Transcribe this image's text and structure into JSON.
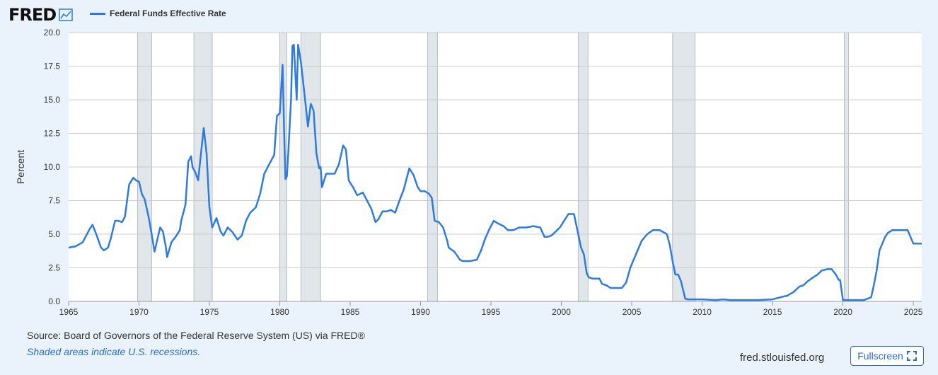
{
  "logo": {
    "text": "FRED"
  },
  "source_text": "Source: Board of Governors of the Federal Reserve System (US) via FRED®",
  "note_text": "Shaded areas indicate U.S. recessions.",
  "site_text": "fred.stlouisfed.org",
  "fullscreen_label": "Fullscreen",
  "colors": {
    "line": "#2f7bdc",
    "recession": "#e1e6ea",
    "grid": "#cccccc",
    "background": "#eaf3fb"
  },
  "chart_data": {
    "type": "line",
    "ylabel": "Percent",
    "xlim": [
      1965,
      2025.6
    ],
    "ylim": [
      0,
      20
    ],
    "y_ticks": [
      "0.0",
      "2.5",
      "5.0",
      "7.5",
      "10.0",
      "12.5",
      "15.0",
      "17.5",
      "20.0"
    ],
    "x_ticks": [
      "1965",
      "1970",
      "1975",
      "1980",
      "1985",
      "1990",
      "1995",
      "2000",
      "2005",
      "2010",
      "2015",
      "2020",
      "2025"
    ],
    "grid": "horizontal",
    "legend": "top-left",
    "recessions": [
      [
        1969.9,
        1970.9
      ],
      [
        1973.9,
        1975.2
      ],
      [
        1980.0,
        1980.5
      ],
      [
        1981.5,
        1982.9
      ],
      [
        1990.5,
        1991.2
      ],
      [
        2001.2,
        2001.9
      ],
      [
        2007.9,
        2009.5
      ],
      [
        2020.1,
        2020.4
      ]
    ],
    "series": [
      {
        "name": "Federal Funds Effective Rate",
        "x": [
          1965.0,
          1965.5,
          1966.0,
          1966.5,
          1966.7,
          1967.0,
          1967.3,
          1967.5,
          1967.8,
          1968.0,
          1968.3,
          1968.5,
          1968.8,
          1969.0,
          1969.3,
          1969.6,
          1969.8,
          1970.0,
          1970.2,
          1970.4,
          1970.7,
          1970.9,
          1971.1,
          1971.3,
          1971.5,
          1971.7,
          1971.9,
          1972.0,
          1972.3,
          1972.6,
          1972.9,
          1973.0,
          1973.3,
          1973.5,
          1973.7,
          1973.8,
          1974.0,
          1974.2,
          1974.4,
          1974.6,
          1974.8,
          1975.0,
          1975.2,
          1975.5,
          1975.8,
          1976.0,
          1976.3,
          1976.6,
          1977.0,
          1977.3,
          1977.6,
          1977.9,
          1978.3,
          1978.6,
          1978.9,
          1979.2,
          1979.6,
          1979.8,
          1980.0,
          1980.2,
          1980.3,
          1980.4,
          1980.5,
          1980.6,
          1980.8,
          1980.9,
          1981.0,
          1981.2,
          1981.3,
          1981.5,
          1981.8,
          1982.0,
          1982.2,
          1982.4,
          1982.6,
          1982.8,
          1982.9,
          1983.0,
          1983.3,
          1983.6,
          1983.9,
          1984.2,
          1984.5,
          1984.7,
          1984.9,
          1985.2,
          1985.5,
          1985.9,
          1986.2,
          1986.5,
          1986.8,
          1987.0,
          1987.3,
          1987.6,
          1987.9,
          1988.2,
          1988.5,
          1988.8,
          1989.0,
          1989.2,
          1989.5,
          1989.8,
          1990.0,
          1990.3,
          1990.6,
          1990.8,
          1991.0,
          1991.3,
          1991.6,
          1991.9,
          1992.0,
          1992.4,
          1992.8,
          1993.0,
          1993.5,
          1994.0,
          1994.3,
          1994.6,
          1994.9,
          1995.2,
          1995.5,
          1995.9,
          1996.2,
          1996.6,
          1997.0,
          1997.5,
          1998.0,
          1998.5,
          1998.8,
          1999.0,
          1999.3,
          1999.6,
          1999.9,
          2000.2,
          2000.5,
          2000.9,
          2001.0,
          2001.2,
          2001.4,
          2001.6,
          2001.8,
          2001.95,
          2002.2,
          2002.7,
          2002.9,
          2003.2,
          2003.5,
          2003.8,
          2004.3,
          2004.6,
          2004.9,
          2005.3,
          2005.7,
          2006.1,
          2006.5,
          2006.7,
          2007.0,
          2007.5,
          2007.7,
          2007.9,
          2008.1,
          2008.3,
          2008.5,
          2008.8,
          2009.0,
          2009.5,
          2010.0,
          2011.0,
          2011.5,
          2012.0,
          2013.0,
          2014.0,
          2015.0,
          2015.9,
          2016.0,
          2016.5,
          2016.9,
          2017.2,
          2017.5,
          2017.9,
          2018.2,
          2018.5,
          2018.9,
          2019.2,
          2019.5,
          2019.7,
          2019.8,
          2020.0,
          2020.15,
          2020.3,
          2020.5,
          2021.0,
          2021.5,
          2022.0,
          2022.2,
          2022.4,
          2022.6,
          2022.8,
          2023.0,
          2023.2,
          2023.5,
          2023.9,
          2024.3,
          2024.6,
          2024.8,
          2025.0,
          2025.6
        ],
        "values": [
          4.0,
          4.1,
          4.4,
          5.4,
          5.7,
          4.9,
          4.0,
          3.8,
          4.0,
          4.7,
          6.0,
          6.0,
          5.9,
          6.3,
          8.7,
          9.2,
          9.0,
          8.9,
          8.0,
          7.6,
          6.2,
          5.0,
          3.7,
          4.6,
          5.5,
          5.2,
          4.1,
          3.3,
          4.4,
          4.8,
          5.3,
          6.0,
          7.2,
          10.4,
          10.8,
          10.0,
          9.6,
          9.0,
          11.0,
          12.9,
          11.0,
          7.0,
          5.5,
          6.2,
          5.2,
          4.9,
          5.5,
          5.2,
          4.6,
          4.9,
          6.0,
          6.6,
          7.0,
          8.0,
          9.5,
          10.1,
          10.9,
          13.8,
          14.0,
          17.6,
          13.0,
          9.1,
          9.3,
          11.0,
          15.0,
          19.0,
          19.1,
          15.0,
          19.1,
          17.8,
          15.0,
          13.0,
          14.7,
          14.2,
          11.0,
          9.9,
          10.0,
          8.5,
          9.5,
          9.5,
          9.5,
          10.2,
          11.6,
          11.3,
          9.0,
          8.5,
          7.9,
          8.1,
          7.5,
          6.9,
          5.9,
          6.1,
          6.7,
          6.7,
          6.8,
          6.6,
          7.5,
          8.3,
          9.1,
          9.9,
          9.4,
          8.5,
          8.2,
          8.2,
          8.0,
          7.7,
          6.0,
          5.9,
          5.5,
          4.5,
          4.0,
          3.7,
          3.1,
          3.0,
          3.0,
          3.1,
          3.8,
          4.7,
          5.4,
          6.0,
          5.8,
          5.6,
          5.3,
          5.3,
          5.5,
          5.5,
          5.6,
          5.5,
          4.8,
          4.8,
          4.9,
          5.2,
          5.5,
          6.0,
          6.5,
          6.5,
          6.0,
          5.0,
          4.0,
          3.5,
          2.1,
          1.8,
          1.7,
          1.7,
          1.3,
          1.2,
          1.0,
          1.0,
          1.0,
          1.4,
          2.5,
          3.5,
          4.5,
          5.0,
          5.3,
          5.3,
          5.3,
          5.0,
          4.2,
          3.0,
          2.0,
          2.0,
          1.5,
          0.2,
          0.15,
          0.15,
          0.15,
          0.1,
          0.15,
          0.1,
          0.1,
          0.1,
          0.15,
          0.4,
          0.4,
          0.7,
          1.1,
          1.2,
          1.5,
          1.8,
          2.0,
          2.3,
          2.4,
          2.4,
          2.0,
          1.6,
          1.6,
          0.1,
          0.1,
          0.1,
          0.1,
          0.1,
          0.1,
          0.3,
          1.2,
          2.3,
          3.8,
          4.3,
          4.8,
          5.1,
          5.3,
          5.3,
          5.3,
          5.3,
          4.8,
          4.3,
          4.3
        ]
      }
    ]
  }
}
